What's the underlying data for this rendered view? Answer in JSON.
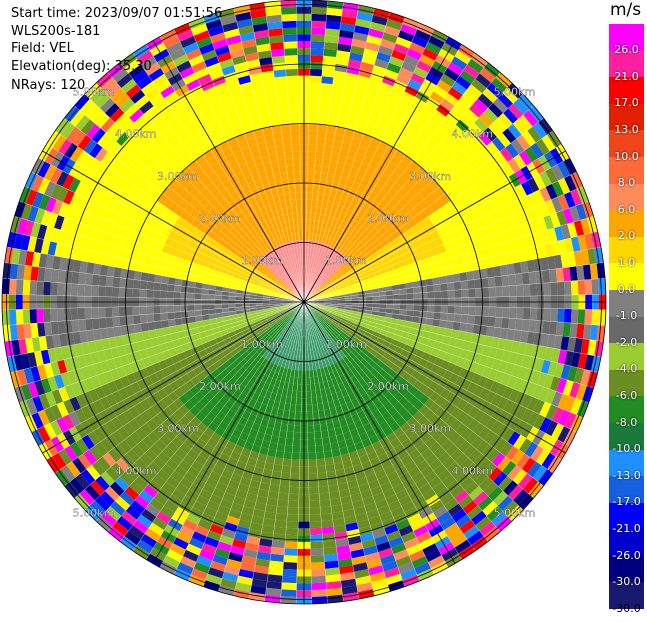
{
  "info": {
    "start_time": "Start time: 2023/09/07 01:51:56",
    "instrument": "WLS200s-181",
    "field": "Field: VEL",
    "elevation": "Elevation(deg): 35.30",
    "nrays": "NRays: 120"
  },
  "colorbar": {
    "unit": "m/s",
    "ticks": [
      "26.0",
      "21.0",
      "17.0",
      "13.0",
      "10.0",
      "8.0",
      "6.0",
      "2.0",
      "1.0",
      "0.0",
      "-1.0",
      "-2.0",
      "-4.0",
      "-6.0",
      "-8.0",
      "-10.0",
      "-13.0",
      "-17.0",
      "-21.0",
      "-26.0",
      "-30.0"
    ],
    "colors": [
      "#f0f",
      "#ff1fa0",
      "#f00",
      "#e22000",
      "#f0441a",
      "#ff6a3a",
      "#ff8c5a",
      "#ffa500",
      "#ffd700",
      "#ffff00",
      "#808080",
      "#696969",
      "#9acd32",
      "#6b8e23",
      "#228b22",
      "#1a7a3a",
      "#1e90ff",
      "#1560e0",
      "#0000ff",
      "#0000cd",
      "#000080",
      "#191970"
    ]
  },
  "chart_data": {
    "type": "ppi",
    "title": "",
    "field": "VEL",
    "unit": "m/s",
    "nrays": 120,
    "elevation_deg": 35.3,
    "range_rings_km": [
      1.0,
      2.0,
      3.0,
      4.0,
      5.0
    ],
    "range_labels": [
      "1.00km",
      "2.00km",
      "3.00km",
      "4.00km",
      "5.00km"
    ],
    "max_range_km": 5.0,
    "description_of_field": "near-range: positive (warm) velocities north sector, negative (green) velocities south sector, grey near zero east-west, noisy random colors beyond ~4 km"
  }
}
